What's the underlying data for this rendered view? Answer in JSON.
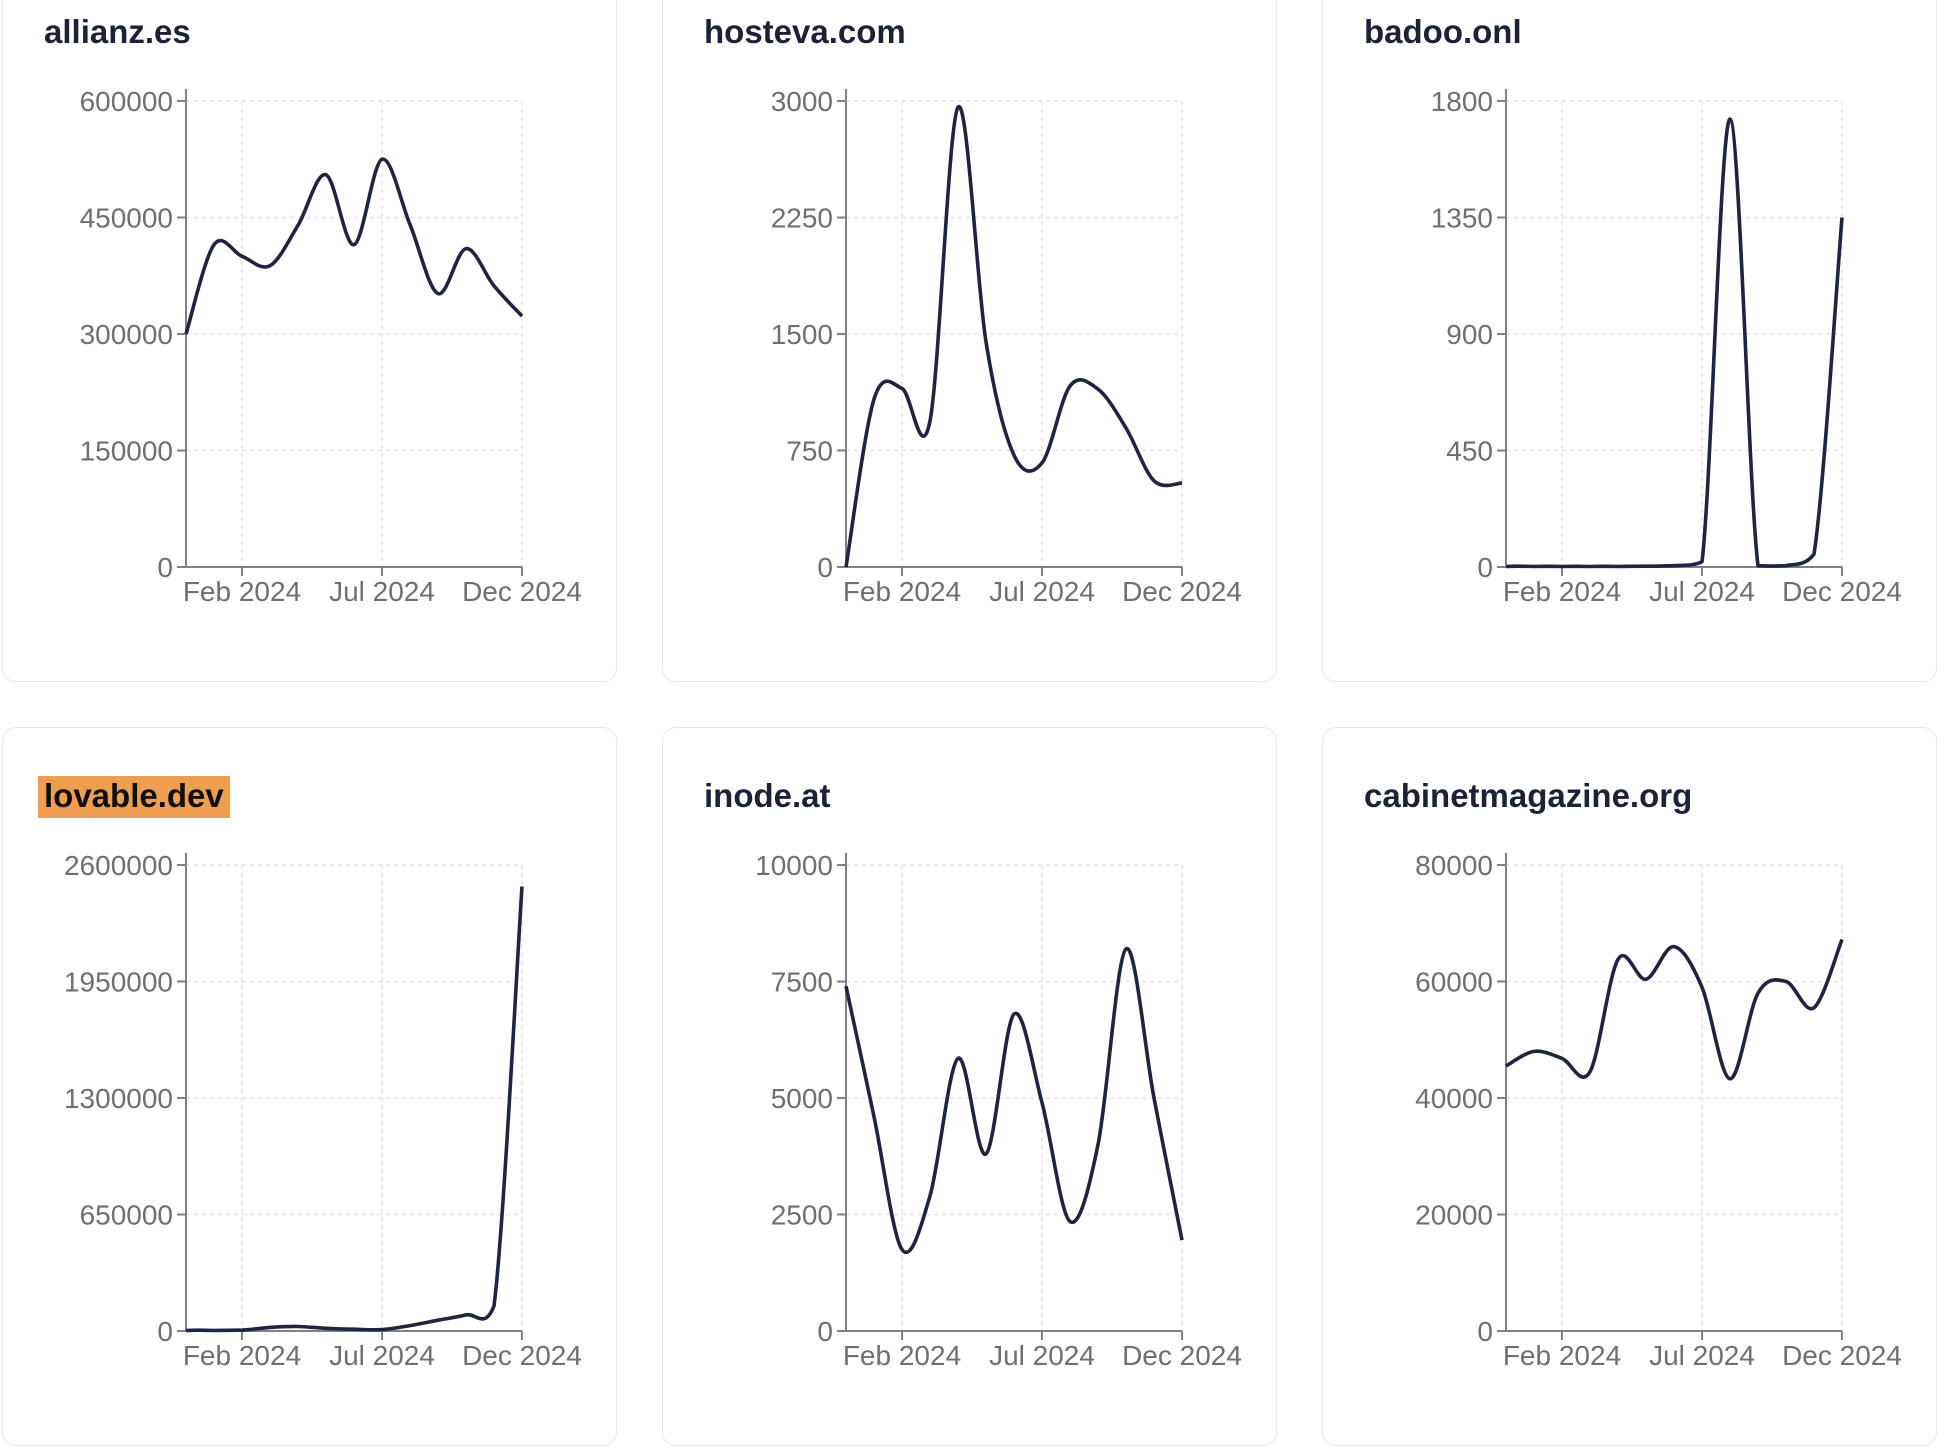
{
  "page": {
    "background": "#ffffff"
  },
  "colors": {
    "line": "#1d2540",
    "title": "#1a2238",
    "tick_label": "#6e6e74",
    "axis": "#808087",
    "grid": "#e4e4e8",
    "card_background": "#ffffff",
    "card_border": "#e7e7ee",
    "highlight_background": "#ef9d4e",
    "highlight_text": "#0e0e0e"
  },
  "chart_data": [
    {
      "type": "line",
      "title": "allianz.es",
      "title_highlighted": false,
      "x": [
        "Dec 2023",
        "Jan 2024",
        "Feb 2024",
        "Mar 2024",
        "Apr 2024",
        "May 2024",
        "Jun 2024",
        "Jul 2024",
        "Aug 2024",
        "Sep 2024",
        "Oct 2024",
        "Nov 2024",
        "Dec 2024"
      ],
      "values": [
        300000,
        415000,
        400000,
        388000,
        440000,
        505000,
        415000,
        525000,
        441000,
        352000,
        410000,
        362000,
        323000
      ],
      "y_ticks": [
        0,
        150000,
        300000,
        450000,
        600000
      ],
      "ylim": [
        0,
        600000
      ],
      "x_tick_labels": [
        "Feb 2024",
        "Jul 2024",
        "Dec 2024"
      ],
      "x_tick_indices": [
        2,
        7,
        12
      ],
      "xlabel": "",
      "ylabel": "",
      "grid": true,
      "legend": false
    },
    {
      "type": "line",
      "title": "hosteva.com",
      "title_highlighted": false,
      "x": [
        "Dec 2023",
        "Jan 2024",
        "Feb 2024",
        "Mar 2024",
        "Apr 2024",
        "May 2024",
        "Jun 2024",
        "Jul 2024",
        "Aug 2024",
        "Sep 2024",
        "Oct 2024",
        "Nov 2024",
        "Dec 2024"
      ],
      "values": [
        0,
        1080,
        1150,
        940,
        2960,
        1450,
        720,
        670,
        1165,
        1145,
        895,
        555,
        540
      ],
      "y_ticks": [
        0,
        750,
        1500,
        2250,
        3000
      ],
      "ylim": [
        0,
        3000
      ],
      "x_tick_labels": [
        "Feb 2024",
        "Jul 2024",
        "Dec 2024"
      ],
      "x_tick_indices": [
        2,
        7,
        12
      ],
      "xlabel": "",
      "ylabel": "",
      "grid": true,
      "legend": false
    },
    {
      "type": "line",
      "title": "badoo.onl",
      "title_highlighted": false,
      "x": [
        "Dec 2023",
        "Jan 2024",
        "Feb 2024",
        "Mar 2024",
        "Apr 2024",
        "May 2024",
        "Jun 2024",
        "Jul 2024",
        "Aug 2024",
        "Sep 2024",
        "Oct 2024",
        "Nov 2024",
        "Dec 2024"
      ],
      "values": [
        2,
        2,
        2,
        2,
        2,
        3,
        5,
        20,
        1730,
        5,
        5,
        50,
        1350
      ],
      "y_ticks": [
        0,
        450,
        900,
        1350,
        1800
      ],
      "ylim": [
        0,
        1800
      ],
      "x_tick_labels": [
        "Feb 2024",
        "Jul 2024",
        "Dec 2024"
      ],
      "x_tick_indices": [
        2,
        7,
        12
      ],
      "xlabel": "",
      "ylabel": "",
      "grid": true,
      "legend": false
    },
    {
      "type": "line",
      "title": "lovable.dev",
      "title_highlighted": true,
      "x": [
        "Dec 2023",
        "Jan 2024",
        "Feb 2024",
        "Mar 2024",
        "Apr 2024",
        "May 2024",
        "Jun 2024",
        "Jul 2024",
        "Aug 2024",
        "Sep 2024",
        "Oct 2024",
        "Nov 2024",
        "Dec 2024"
      ],
      "values": [
        2000,
        3000,
        5000,
        20000,
        25000,
        15000,
        10000,
        8000,
        30000,
        60000,
        90000,
        140000,
        2480000
      ],
      "y_ticks": [
        0,
        650000,
        1300000,
        1950000,
        2600000
      ],
      "ylim": [
        0,
        2600000
      ],
      "x_tick_labels": [
        "Feb 2024",
        "Jul 2024",
        "Dec 2024"
      ],
      "x_tick_indices": [
        2,
        7,
        12
      ],
      "xlabel": "",
      "ylabel": "",
      "grid": true,
      "legend": false
    },
    {
      "type": "line",
      "title": "inode.at",
      "title_highlighted": false,
      "x": [
        "Dec 2023",
        "Jan 2024",
        "Feb 2024",
        "Mar 2024",
        "Apr 2024",
        "May 2024",
        "Jun 2024",
        "Jul 2024",
        "Aug 2024",
        "Sep 2024",
        "Oct 2024",
        "Nov 2024",
        "Dec 2024"
      ],
      "values": [
        7400,
        4600,
        1750,
        2900,
        5850,
        3800,
        6800,
        4900,
        2350,
        4000,
        8200,
        5000,
        1950
      ],
      "y_ticks": [
        0,
        2500,
        5000,
        7500,
        10000
      ],
      "ylim": [
        0,
        10000
      ],
      "x_tick_labels": [
        "Feb 2024",
        "Jul 2024",
        "Dec 2024"
      ],
      "x_tick_indices": [
        2,
        7,
        12
      ],
      "xlabel": "",
      "ylabel": "",
      "grid": true,
      "legend": false
    },
    {
      "type": "line",
      "title": "cabinetmagazine.org",
      "title_highlighted": false,
      "x": [
        "Dec 2023",
        "Jan 2024",
        "Feb 2024",
        "Mar 2024",
        "Apr 2024",
        "May 2024",
        "Jun 2024",
        "Jul 2024",
        "Aug 2024",
        "Sep 2024",
        "Oct 2024",
        "Nov 2024",
        "Dec 2024"
      ],
      "values": [
        45500,
        48000,
        46800,
        44500,
        63800,
        60400,
        66000,
        59000,
        43300,
        58000,
        60000,
        55500,
        67200
      ],
      "y_ticks": [
        0,
        20000,
        40000,
        60000,
        80000
      ],
      "ylim": [
        0,
        80000
      ],
      "x_tick_labels": [
        "Feb 2024",
        "Jul 2024",
        "Dec 2024"
      ],
      "x_tick_indices": [
        2,
        7,
        12
      ],
      "xlabel": "",
      "ylabel": "",
      "grid": true,
      "legend": false
    }
  ]
}
